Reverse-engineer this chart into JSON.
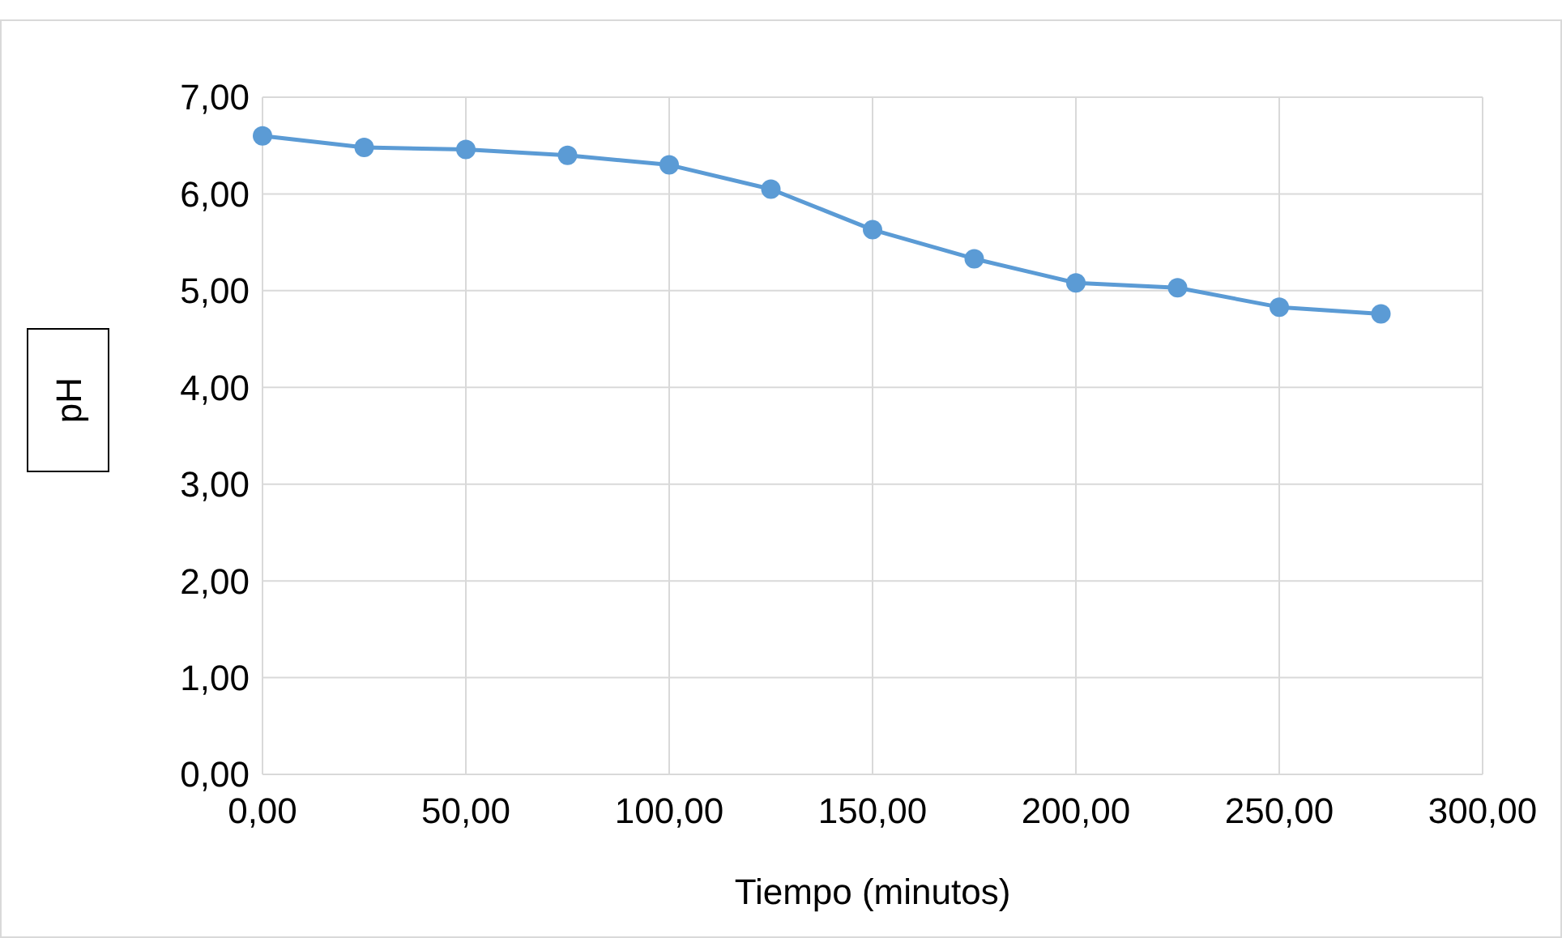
{
  "chart_data": {
    "type": "line",
    "xlabel": "Tiempo (minutos)",
    "ylabel": "pH",
    "x": [
      0,
      25,
      50,
      75,
      100,
      125,
      150,
      175,
      200,
      225,
      250,
      275
    ],
    "series": [
      {
        "color": "#5b9bd5",
        "values": [
          6.6,
          6.48,
          6.46,
          6.4,
          6.3,
          6.05,
          5.63,
          5.33,
          5.08,
          5.03,
          4.83,
          4.76
        ]
      }
    ],
    "xlim": [
      0,
      300
    ],
    "ylim": [
      0,
      7
    ],
    "xticks": [
      {
        "value": 0,
        "label": "0,00"
      },
      {
        "value": 50,
        "label": "50,00"
      },
      {
        "value": 100,
        "label": "100,00"
      },
      {
        "value": 150,
        "label": "150,00"
      },
      {
        "value": 200,
        "label": "200,00"
      },
      {
        "value": 250,
        "label": "250,00"
      },
      {
        "value": 300,
        "label": "300,00"
      }
    ],
    "yticks": [
      {
        "value": 0,
        "label": "0,00"
      },
      {
        "value": 1,
        "label": "1,00"
      },
      {
        "value": 2,
        "label": "2,00"
      },
      {
        "value": 3,
        "label": "3,00"
      },
      {
        "value": 4,
        "label": "4,00"
      },
      {
        "value": 5,
        "label": "5,00"
      },
      {
        "value": 6,
        "label": "6,00"
      },
      {
        "value": 7,
        "label": "7,00"
      }
    ],
    "grid": true,
    "marker": "circle",
    "line_style": "solid"
  }
}
